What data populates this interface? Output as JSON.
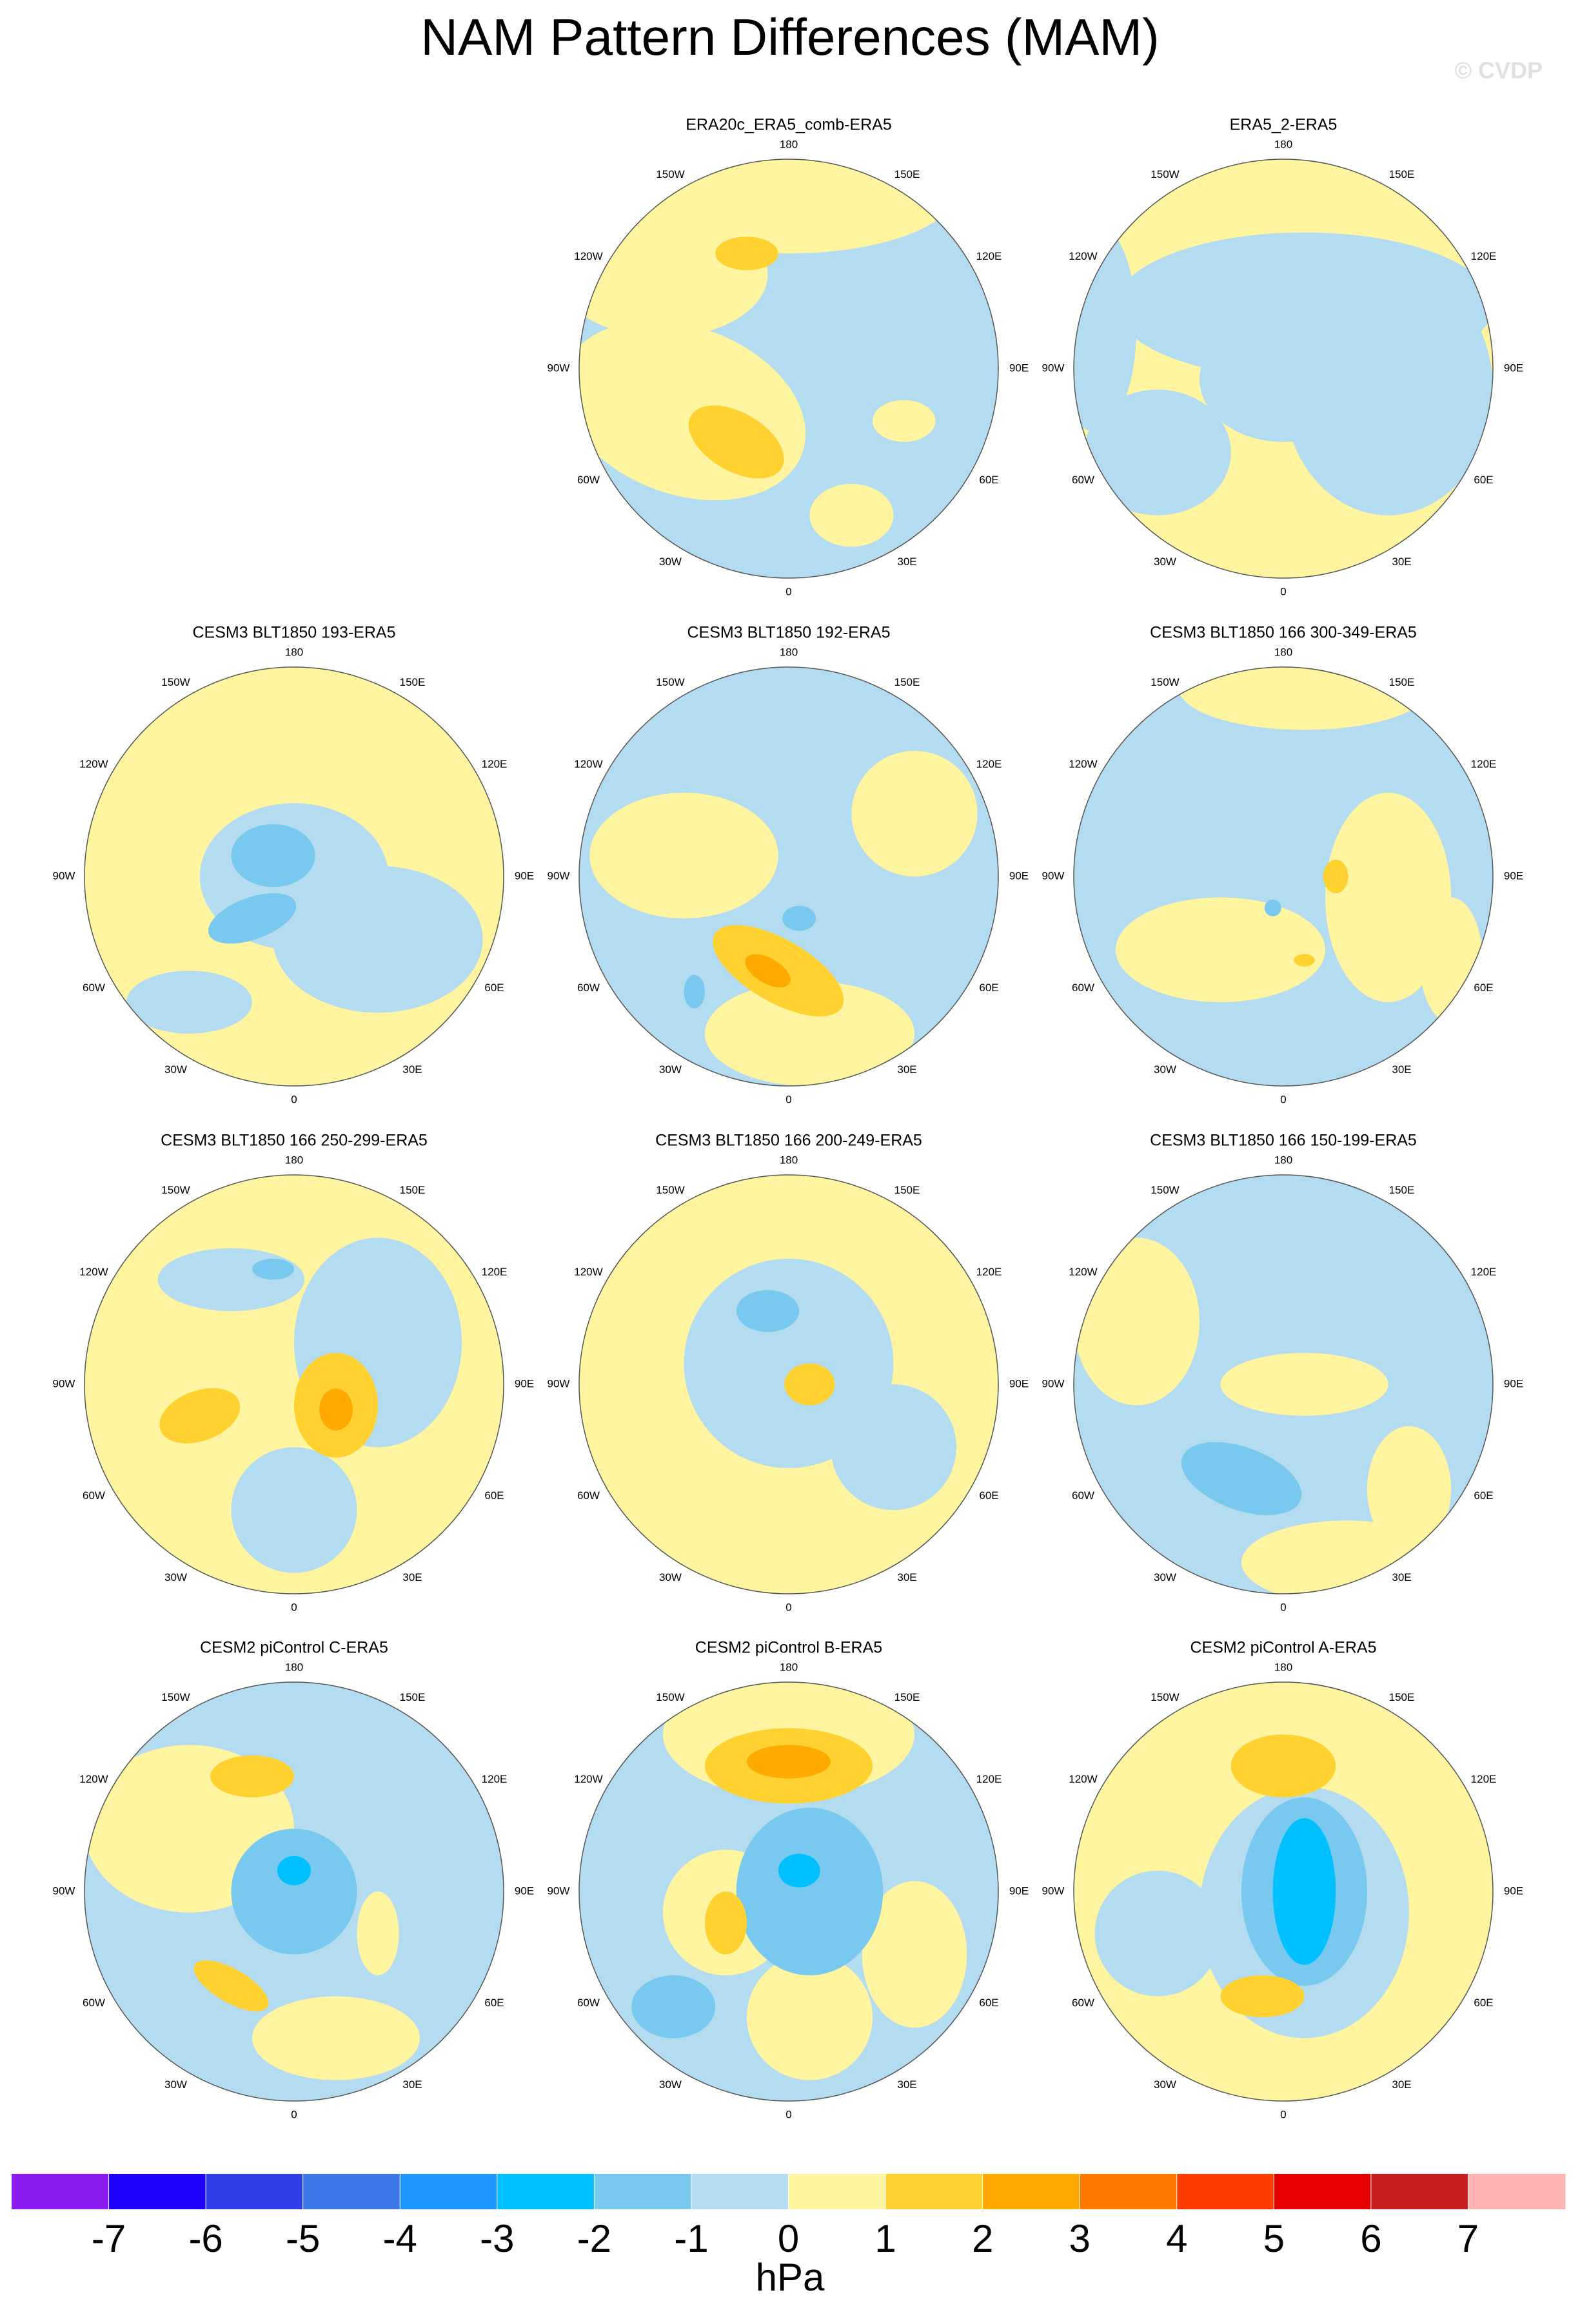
{
  "title": "NAM Pattern Differences (MAM)",
  "watermark": "© CVDP",
  "lon_labels": [
    "0",
    "30E",
    "60E",
    "90E",
    "120E",
    "150E",
    "180",
    "150W",
    "120W",
    "90W",
    "60W",
    "30W"
  ],
  "panels": [
    {
      "title": "ERA20c_ERA5_comb-ERA5"
    },
    {
      "title": "ERA5_2-ERA5"
    },
    {
      "title": "CESM3 BLT1850 193-ERA5"
    },
    {
      "title": "CESM3 BLT1850 192-ERA5"
    },
    {
      "title": "CESM3 BLT1850 166 300-349-ERA5"
    },
    {
      "title": "CESM3 BLT1850 166 250-299-ERA5"
    },
    {
      "title": "CESM3 BLT1850 166 200-249-ERA5"
    },
    {
      "title": "CESM3 BLT1850 166 150-199-ERA5"
    },
    {
      "title": "CESM2 piControl C-ERA5"
    },
    {
      "title": "CESM2 piControl B-ERA5"
    },
    {
      "title": "CESM2 piControl A-ERA5"
    }
  ],
  "colorbar": {
    "colors": [
      "#8a1ef0",
      "#1e00ff",
      "#2d3ee6",
      "#3c78e8",
      "#1e96ff",
      "#00c0ff",
      "#78c8f0",
      "#b4dcf0",
      "#fff5a0",
      "#ffd232",
      "#ffaa00",
      "#ff7800",
      "#ff3c00",
      "#e60000",
      "#c81e1e",
      "#ffb4b4"
    ],
    "ticks": [
      -7,
      -6,
      -5,
      -4,
      -3,
      -2,
      -1,
      0,
      1,
      2,
      3,
      4,
      5,
      6,
      7
    ],
    "unit": "hPa"
  }
}
